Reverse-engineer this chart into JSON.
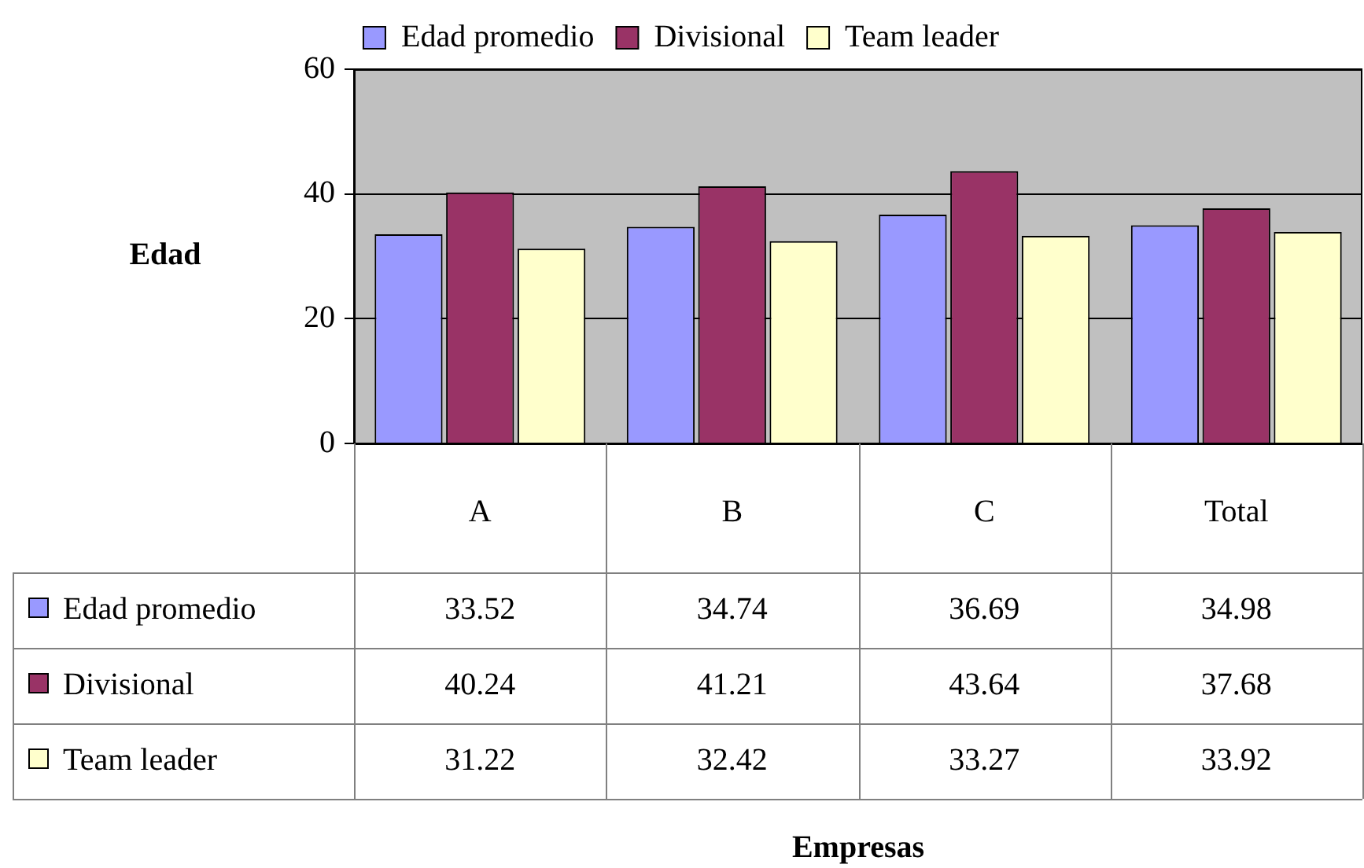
{
  "chart_data": {
    "type": "bar",
    "annotations": [
      "Empresas"
    ],
    "ylabel": "Edad",
    "categories": [
      "A",
      "B",
      "C",
      "Total"
    ],
    "series": [
      {
        "name": "Edad promedio",
        "color": "#9999ff",
        "values": [
          33.52,
          34.74,
          36.69,
          34.98
        ]
      },
      {
        "name": "Divisional",
        "color": "#993366",
        "values": [
          40.24,
          41.21,
          43.64,
          37.68
        ]
      },
      {
        "name": "Team leader",
        "color": "#ffffcc",
        "values": [
          31.22,
          32.42,
          33.27,
          33.92
        ]
      }
    ],
    "ylim": [
      0,
      60
    ],
    "yticks": [
      0,
      20,
      40,
      60
    ],
    "grid": "y",
    "legend": "top",
    "data_labels": true
  }
}
